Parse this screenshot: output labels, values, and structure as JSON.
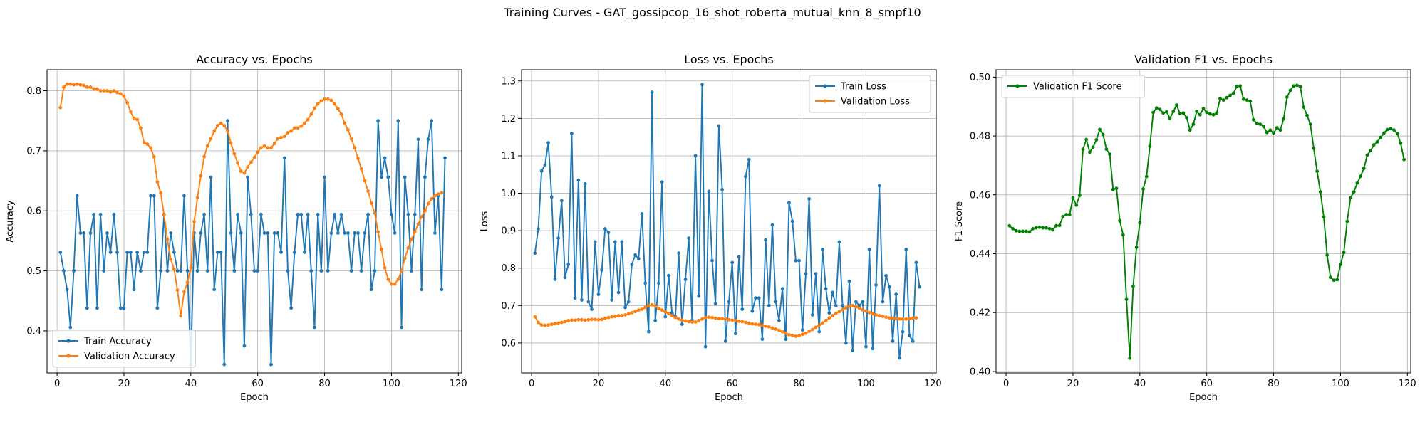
{
  "figure_title": "Training Curves - GAT_gossipcop_16_shot_roberta_mutual_knn_8_smpf10",
  "colors": {
    "train": "#1f77b4",
    "validation": "#ff7f0e",
    "f1": "#008000",
    "grid": "#b0b0b0"
  },
  "chart_data": [
    {
      "type": "line",
      "title": "Accuracy vs. Epochs",
      "xlabel": "Epoch",
      "ylabel": "Accuracy",
      "xlim": [
        -3,
        121
      ],
      "ylim": [
        0.33,
        0.835
      ],
      "xticks": [
        0,
        20,
        40,
        60,
        80,
        100,
        120
      ],
      "yticks": [
        0.4,
        0.5,
        0.6,
        0.7,
        0.8
      ],
      "ytick_labels": [
        "0.4",
        "0.5",
        "0.6",
        "0.7",
        "0.8"
      ],
      "grid": true,
      "legend_position": "lower-left",
      "series": [
        {
          "name": "Train Accuracy",
          "color": "#1f77b4",
          "x_start": 1,
          "values": [
            0.531,
            0.5,
            0.469,
            0.406,
            0.5,
            0.625,
            0.563,
            0.563,
            0.438,
            0.563,
            0.594,
            0.438,
            0.594,
            0.5,
            0.563,
            0.531,
            0.594,
            0.531,
            0.438,
            0.438,
            0.531,
            0.531,
            0.469,
            0.531,
            0.5,
            0.531,
            0.531,
            0.625,
            0.625,
            0.438,
            0.5,
            0.594,
            0.5,
            0.563,
            0.531,
            0.5,
            0.5,
            0.625,
            0.5,
            0.344,
            0.563,
            0.5,
            0.563,
            0.594,
            0.5,
            0.656,
            0.469,
            0.531,
            0.531,
            0.344,
            0.75,
            0.563,
            0.5,
            0.594,
            0.563,
            0.375,
            0.656,
            0.594,
            0.5,
            0.5,
            0.594,
            0.563,
            0.563,
            0.344,
            0.563,
            0.563,
            0.531,
            0.688,
            0.5,
            0.438,
            0.531,
            0.594,
            0.594,
            0.531,
            0.594,
            0.5,
            0.406,
            0.594,
            0.5,
            0.656,
            0.5,
            0.563,
            0.594,
            0.563,
            0.594,
            0.563,
            0.563,
            0.5,
            0.563,
            0.563,
            0.5,
            0.563,
            0.594,
            0.469,
            0.5,
            0.75,
            0.656,
            0.688,
            0.656,
            0.594,
            0.563,
            0.75,
            0.406,
            0.656,
            0.594,
            0.5,
            0.594,
            0.719,
            0.469,
            0.656,
            0.719,
            0.75,
            0.563,
            0.625,
            0.469,
            0.688
          ]
        },
        {
          "name": "Validation Accuracy",
          "color": "#ff7f0e",
          "x_start": 1,
          "values": [
            0.772,
            0.806,
            0.811,
            0.811,
            0.81,
            0.811,
            0.81,
            0.809,
            0.806,
            0.806,
            0.803,
            0.803,
            0.8,
            0.8,
            0.8,
            0.798,
            0.8,
            0.797,
            0.795,
            0.791,
            0.78,
            0.765,
            0.754,
            0.752,
            0.738,
            0.714,
            0.711,
            0.705,
            0.69,
            0.648,
            0.63,
            0.593,
            0.553,
            0.519,
            0.503,
            0.468,
            0.425,
            0.465,
            0.481,
            0.505,
            0.582,
            0.622,
            0.658,
            0.69,
            0.708,
            0.72,
            0.733,
            0.742,
            0.746,
            0.742,
            0.733,
            0.713,
            0.695,
            0.68,
            0.666,
            0.663,
            0.673,
            0.681,
            0.689,
            0.698,
            0.705,
            0.708,
            0.705,
            0.705,
            0.712,
            0.72,
            0.722,
            0.724,
            0.73,
            0.733,
            0.738,
            0.738,
            0.741,
            0.746,
            0.752,
            0.761,
            0.771,
            0.778,
            0.783,
            0.786,
            0.786,
            0.784,
            0.778,
            0.77,
            0.761,
            0.746,
            0.735,
            0.72,
            0.705,
            0.687,
            0.67,
            0.65,
            0.633,
            0.613,
            0.596,
            0.565,
            0.536,
            0.505,
            0.486,
            0.478,
            0.478,
            0.486,
            0.5,
            0.521,
            0.538,
            0.553,
            0.565,
            0.578,
            0.59,
            0.6,
            0.612,
            0.62,
            0.625,
            0.628,
            0.63
          ]
        }
      ]
    },
    {
      "type": "line",
      "title": "Loss vs. Epochs",
      "xlabel": "Epoch",
      "ylabel": "Loss",
      "xlim": [
        -3,
        121
      ],
      "ylim": [
        0.52,
        1.33
      ],
      "xticks": [
        0,
        20,
        40,
        60,
        80,
        100,
        120
      ],
      "yticks": [
        0.6,
        0.7,
        0.8,
        0.9,
        1.0,
        1.1,
        1.2,
        1.3
      ],
      "ytick_labels": [
        "0.6",
        "0.7",
        "0.8",
        "0.9",
        "1.0",
        "1.1",
        "1.2",
        "1.3"
      ],
      "grid": true,
      "legend_position": "top-right",
      "series": [
        {
          "name": "Train Loss",
          "color": "#1f77b4",
          "x_start": 1,
          "values": [
            0.84,
            0.905,
            1.06,
            1.075,
            1.135,
            0.99,
            0.77,
            0.88,
            0.98,
            0.775,
            0.81,
            1.16,
            0.72,
            1.035,
            0.715,
            1.025,
            0.71,
            0.69,
            0.87,
            0.73,
            0.795,
            0.905,
            0.895,
            0.715,
            0.87,
            0.735,
            0.87,
            0.695,
            0.71,
            0.81,
            0.835,
            0.825,
            0.945,
            0.76,
            0.63,
            1.27,
            0.66,
            0.76,
            1.03,
            0.67,
            0.78,
            0.68,
            0.67,
            0.84,
            0.65,
            0.77,
            0.88,
            0.66,
            1.1,
            0.725,
            1.29,
            0.59,
            1.005,
            0.82,
            0.705,
            1.18,
            1.01,
            0.605,
            0.71,
            0.815,
            0.625,
            0.83,
            0.69,
            1.045,
            1.09,
            0.685,
            0.72,
            0.72,
            0.61,
            0.875,
            0.7,
            0.915,
            0.71,
            0.66,
            0.745,
            0.61,
            0.975,
            0.925,
            0.82,
            0.82,
            0.635,
            0.785,
            0.985,
            0.675,
            0.785,
            0.63,
            0.85,
            0.745,
            0.68,
            0.735,
            0.7,
            0.87,
            0.7,
            0.6,
            0.765,
            0.58,
            0.71,
            0.7,
            0.71,
            0.59,
            0.85,
            0.585,
            0.755,
            1.02,
            0.71,
            0.78,
            0.75,
            0.605,
            0.73,
            0.56,
            0.63,
            0.85,
            0.62,
            0.605,
            0.815,
            0.75
          ]
        },
        {
          "name": "Validation Loss",
          "color": "#ff7f0e",
          "x_start": 1,
          "values": [
            0.67,
            0.655,
            0.648,
            0.647,
            0.648,
            0.65,
            0.652,
            0.653,
            0.655,
            0.657,
            0.66,
            0.661,
            0.661,
            0.662,
            0.662,
            0.661,
            0.662,
            0.663,
            0.663,
            0.662,
            0.663,
            0.666,
            0.668,
            0.67,
            0.671,
            0.673,
            0.673,
            0.675,
            0.678,
            0.681,
            0.684,
            0.688,
            0.69,
            0.695,
            0.7,
            0.702,
            0.698,
            0.692,
            0.688,
            0.683,
            0.678,
            0.673,
            0.668,
            0.664,
            0.661,
            0.659,
            0.657,
            0.656,
            0.656,
            0.66,
            0.664,
            0.668,
            0.669,
            0.668,
            0.666,
            0.665,
            0.665,
            0.664,
            0.662,
            0.661,
            0.66,
            0.658,
            0.657,
            0.655,
            0.653,
            0.651,
            0.65,
            0.649,
            0.647,
            0.645,
            0.643,
            0.64,
            0.637,
            0.634,
            0.63,
            0.626,
            0.622,
            0.62,
            0.618,
            0.62,
            0.623,
            0.626,
            0.631,
            0.636,
            0.642,
            0.648,
            0.654,
            0.66,
            0.667,
            0.673,
            0.679,
            0.684,
            0.689,
            0.694,
            0.698,
            0.7,
            0.697,
            0.693,
            0.689,
            0.685,
            0.681,
            0.678,
            0.675,
            0.673,
            0.671,
            0.669,
            0.667,
            0.666,
            0.665,
            0.664,
            0.664,
            0.664,
            0.665,
            0.666,
            0.667
          ]
        }
      ]
    },
    {
      "type": "line",
      "title": "Validation F1 vs. Epochs",
      "xlabel": "Epoch",
      "ylabel": "F1 Score",
      "xlim": [
        -3,
        121
      ],
      "ylim": [
        0.3995,
        0.5025
      ],
      "xticks": [
        0,
        20,
        40,
        60,
        80,
        100,
        120
      ],
      "yticks": [
        0.4,
        0.42,
        0.44,
        0.46,
        0.48,
        0.5
      ],
      "ytick_labels": [
        "0.40",
        "0.42",
        "0.44",
        "0.46",
        "0.48",
        "0.50"
      ],
      "grid": true,
      "legend_position": "top-left",
      "series": [
        {
          "name": "Validation F1 Score",
          "color": "#008000",
          "x_start": 1,
          "values": [
            0.4495,
            0.4485,
            0.4478,
            0.4476,
            0.4476,
            0.4476,
            0.4474,
            0.4485,
            0.4488,
            0.449,
            0.4488,
            0.4488,
            0.4485,
            0.4481,
            0.4495,
            0.4496,
            0.4526,
            0.4533,
            0.4533,
            0.459,
            0.4565,
            0.4598,
            0.4755,
            0.4788,
            0.4745,
            0.4762,
            0.4787,
            0.4822,
            0.4805,
            0.4755,
            0.4738,
            0.4618,
            0.4622,
            0.4512,
            0.4464,
            0.4245,
            0.4045,
            0.429,
            0.4422,
            0.4505,
            0.462,
            0.4662,
            0.4765,
            0.488,
            0.4895,
            0.489,
            0.4878,
            0.4882,
            0.486,
            0.4883,
            0.4905,
            0.4876,
            0.4878,
            0.4862,
            0.482,
            0.484,
            0.4883,
            0.4872,
            0.4893,
            0.488,
            0.4875,
            0.4872,
            0.4878,
            0.4928,
            0.4922,
            0.493,
            0.4938,
            0.4945,
            0.4968,
            0.497,
            0.4925,
            0.4922,
            0.4918,
            0.4855,
            0.4843,
            0.484,
            0.4832,
            0.4812,
            0.482,
            0.481,
            0.4828,
            0.482,
            0.4858,
            0.4932,
            0.4955,
            0.497,
            0.4972,
            0.4967,
            0.4898,
            0.487,
            0.484,
            0.4758,
            0.468,
            0.461,
            0.4525,
            0.4395,
            0.432,
            0.431,
            0.4312,
            0.4363,
            0.4405,
            0.451,
            0.459,
            0.461,
            0.464,
            0.4663,
            0.469,
            0.4735,
            0.475,
            0.477,
            0.478,
            0.4795,
            0.481,
            0.4822,
            0.4825,
            0.482,
            0.4808,
            0.4775,
            0.472
          ]
        }
      ]
    }
  ]
}
